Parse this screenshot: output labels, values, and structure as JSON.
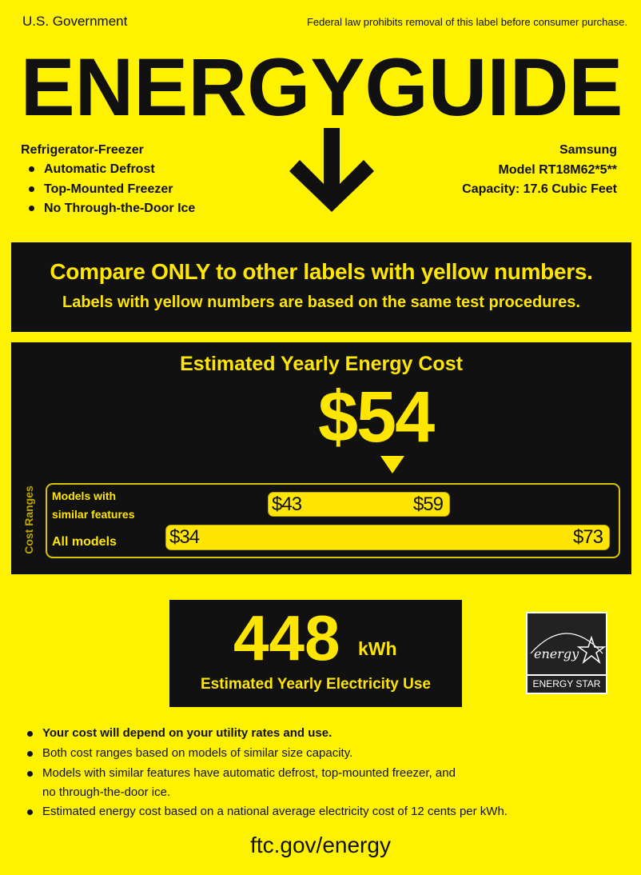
{
  "header": {
    "issuer": "U.S. Government",
    "notice": "Federal law prohibits removal of this label before consumer purchase.",
    "title": "ENERGYGUIDE"
  },
  "product": {
    "type": "Refrigerator-Freezer",
    "features": [
      "Automatic Defrost",
      "Top-Mounted Freezer",
      "No Through-the-Door Ice"
    ],
    "brand": "Samsung",
    "model": "Model RT18M62*5**",
    "capacity": "Capacity: 17.6 Cubic Feet"
  },
  "compare": {
    "headline": "Compare ONLY to other labels with yellow numbers.",
    "subline": "Labels with yellow numbers are based on the same test procedures."
  },
  "cost": {
    "title": "Estimated Yearly Energy Cost",
    "value": "$54",
    "ranges_label": "Cost Ranges",
    "similar": {
      "label1": "Models with",
      "label2": "similar features",
      "low": "$43",
      "high": "$59"
    },
    "all": {
      "label": "All models",
      "low": "$34",
      "high": "$73"
    },
    "marker_value": 54,
    "scale_min": 34,
    "scale_max": 73
  },
  "electricity": {
    "value": "448",
    "unit": "kWh",
    "label": "Estimated Yearly Electricity Use"
  },
  "energy_star": {
    "script": "energy",
    "label": "ENERGY STAR"
  },
  "notes": [
    "Your cost will depend on your utility rates and use.",
    "Both cost ranges based on models of similar size capacity.",
    "Models with similar features have automatic defrost, top-mounted freezer, and",
    "no through-the-door ice.",
    "Estimated energy cost based on a national average electricity cost of 12 cents per kWh."
  ],
  "footer": {
    "url": "ftc.gov/energy"
  },
  "colors": {
    "background": "#fff200",
    "panel": "#111111",
    "accent": "#ffe600"
  }
}
